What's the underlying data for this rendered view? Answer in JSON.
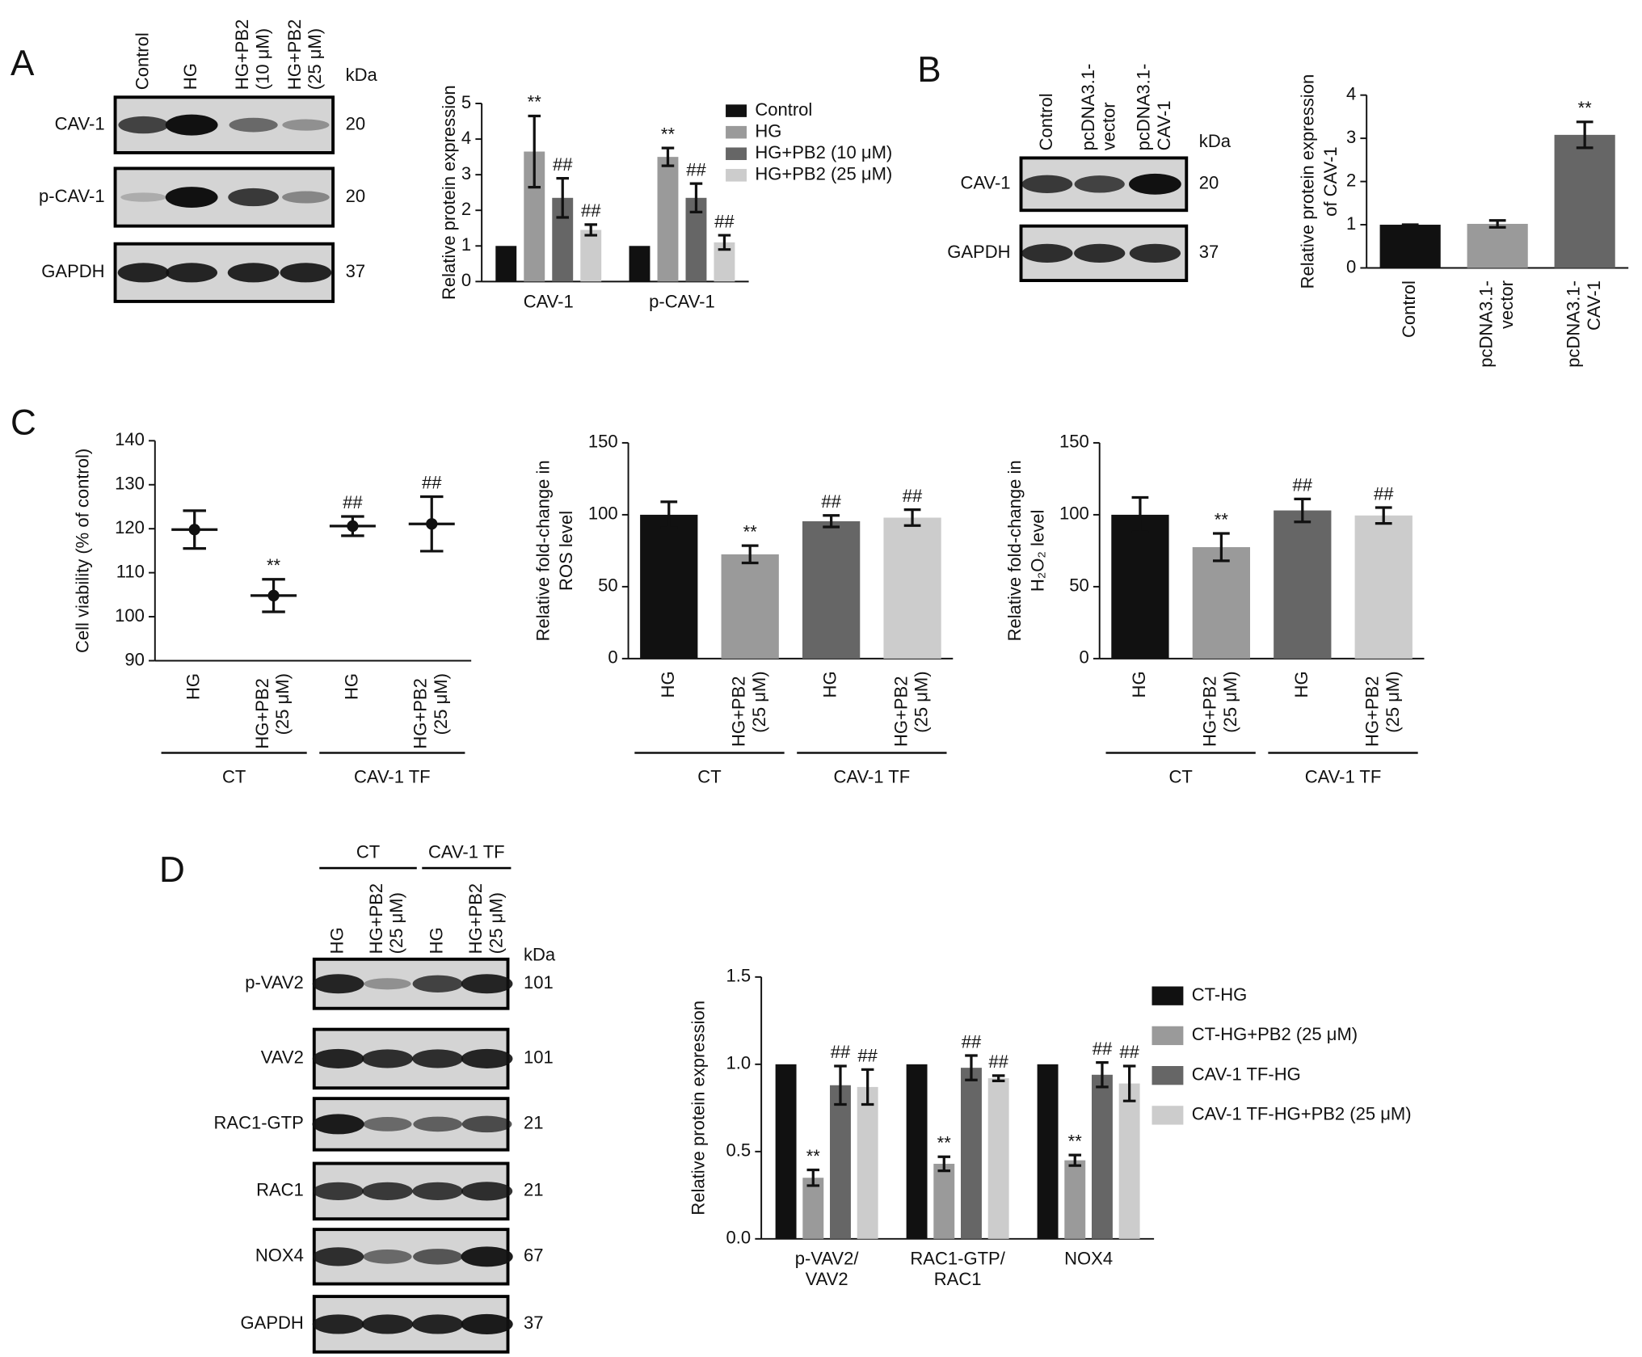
{
  "panel_labels": [
    "A",
    "B",
    "C",
    "D"
  ],
  "blots": [
    {
      "lanes": [
        "Control",
        "HG",
        "HG+PB2 (10 μM)",
        "HG+PB2 (25 μM)"
      ],
      "unit": "kDa",
      "rows": [
        {
          "name": "CAV-1",
          "kda": 20
        },
        {
          "name": "p-CAV-1",
          "kda": 20
        },
        {
          "name": "GAPDH",
          "kda": 37
        }
      ]
    },
    {
      "lanes": [
        "Control",
        "pcDNA3.1-vector",
        "pcDNA3.1-CAV-1"
      ],
      "unit": "kDa",
      "rows": [
        {
          "name": "CAV-1",
          "kda": 20
        },
        {
          "name": "GAPDH",
          "kda": 37
        }
      ]
    },
    {
      "groups": [
        "CT",
        "CAV-1 TF"
      ],
      "lanes": [
        "HG",
        "HG+PB2 (25 μM)",
        "HG",
        "HG+PB2 (25 μM)"
      ],
      "unit": "kDa",
      "rows": [
        {
          "name": "p-VAV2",
          "kda": 101
        },
        {
          "name": "VAV2",
          "kda": 101
        },
        {
          "name": "RAC1-GTP",
          "kda": 21
        },
        {
          "name": "RAC1",
          "kda": 21
        },
        {
          "name": "NOX4",
          "kda": 67
        },
        {
          "name": "GAPDH",
          "kda": 37
        }
      ]
    }
  ],
  "chart_data": [
    {
      "type": "bar",
      "ylabel": [
        "Relative protein expression"
      ],
      "categories": [
        "CAV-1",
        "p-CAV-1"
      ],
      "series": [
        {
          "name": "Control",
          "color": "#111111",
          "values": [
            1,
            1
          ]
        },
        {
          "name": "HG",
          "color": "#9a9a9a",
          "values": [
            3.65,
            3.5
          ],
          "errors": [
            1.0,
            0.25
          ],
          "markers": [
            "**",
            "**"
          ]
        },
        {
          "name": "HG+PB2 (10 μM)",
          "color": "#666666",
          "values": [
            2.35,
            2.35
          ],
          "errors": [
            0.55,
            0.4
          ],
          "markers": [
            "##",
            "##"
          ]
        },
        {
          "name": "HG+PB2 (25 μM)",
          "color": "#cccccc",
          "values": [
            1.45,
            1.1
          ],
          "errors": [
            0.15,
            0.2
          ],
          "markers": [
            "##",
            "##"
          ]
        }
      ],
      "ylim": [
        0,
        5
      ],
      "yticks": [
        0,
        1,
        2,
        3,
        4,
        5
      ],
      "legend": "right"
    },
    {
      "type": "bar",
      "ylabel": [
        "Relative protein expression",
        "of CAV-1"
      ],
      "categories": [
        "Control",
        "pcDNA3.1-vector",
        "pcDNA3.1-CAV-1"
      ],
      "values": [
        1,
        1.02,
        3.08
      ],
      "errors": [
        0,
        0.08,
        0.3
      ],
      "markers": [
        null,
        null,
        "**"
      ],
      "colors": [
        "#111111",
        "#9a9a9a",
        "#666666"
      ],
      "ylim": [
        0,
        4
      ],
      "yticks": [
        0,
        1,
        2,
        3,
        4
      ]
    },
    {
      "type": "dot",
      "ylabel": [
        "Cell viability (% of control)"
      ],
      "categories": [
        "HG",
        "HG+PB2 (25 μM)",
        "HG",
        "HG+PB2 (25 μM)"
      ],
      "groups": [
        "CT",
        "CAV-1 TF"
      ],
      "values": [
        119.8,
        104.8,
        120.6,
        121.1
      ],
      "errors": [
        4.3,
        3.7,
        2.2,
        6.2
      ],
      "markers": [
        null,
        "**",
        "##",
        "##"
      ],
      "color": "#111111",
      "ylim": [
        90,
        140
      ],
      "yticks": [
        90,
        100,
        110,
        120,
        130,
        140
      ]
    },
    {
      "type": "bar",
      "ylabel": [
        "Relative fold-change in",
        "ROS level"
      ],
      "categories": [
        "HG",
        "HG+PB2 (25 μM)",
        "HG",
        "HG+PB2 (25 μM)"
      ],
      "groups": [
        "CT",
        "CAV-1 TF"
      ],
      "values": [
        100,
        72.5,
        95.5,
        98
      ],
      "errors": [
        9,
        6,
        4,
        5.5
      ],
      "markers": [
        null,
        "**",
        "##",
        "##"
      ],
      "colors": [
        "#111111",
        "#9a9a9a",
        "#666666",
        "#cccccc"
      ],
      "ylim": [
        0,
        150
      ],
      "yticks": [
        0,
        50,
        100,
        150
      ]
    },
    {
      "type": "bar",
      "ylabel": [
        "Relative fold-change in",
        "H₂O₂ level"
      ],
      "categories": [
        "HG",
        "HG+PB2 (25 μM)",
        "HG",
        "HG+PB2 (25 μM)"
      ],
      "groups": [
        "CT",
        "CAV-1 TF"
      ],
      "values": [
        100,
        77.5,
        103,
        99.5
      ],
      "errors": [
        12,
        9.5,
        8,
        5.5
      ],
      "markers": [
        null,
        "**",
        "##",
        "##"
      ],
      "colors": [
        "#111111",
        "#9a9a9a",
        "#666666",
        "#cccccc"
      ],
      "ylim": [
        0,
        150
      ],
      "yticks": [
        0,
        50,
        100,
        150
      ]
    },
    {
      "type": "bar",
      "ylabel": [
        "Relative protein expression"
      ],
      "categories": [
        "p-VAV2/VAV2",
        "RAC1-GTP/RAC1",
        "NOX4"
      ],
      "series": [
        {
          "name": "CT-HG",
          "color": "#111111",
          "values": [
            1,
            1,
            1
          ]
        },
        {
          "name": "CT-HG+PB2 (25 μM)",
          "color": "#9a9a9a",
          "values": [
            0.35,
            0.43,
            0.45
          ],
          "errors": [
            0.045,
            0.04,
            0.03
          ],
          "markers": [
            "**",
            "**",
            "**"
          ]
        },
        {
          "name": "CAV-1 TF-HG",
          "color": "#666666",
          "values": [
            0.88,
            0.98,
            0.94
          ],
          "errors": [
            0.11,
            0.07,
            0.07
          ],
          "markers": [
            "##",
            "##",
            "##"
          ]
        },
        {
          "name": "CAV-1 TF-HG+PB2 (25 μM)",
          "color": "#cccccc",
          "values": [
            0.87,
            0.92,
            0.89
          ],
          "errors": [
            0.1,
            0.015,
            0.1
          ],
          "markers": [
            "##",
            "##",
            "##"
          ]
        }
      ],
      "ylim": [
        0,
        1.5
      ],
      "yticks": [
        {
          "value": 0,
          "label": "0.0"
        },
        0.5,
        {
          "value": 1,
          "label": "1.0"
        },
        1.5
      ],
      "legend": "right"
    }
  ]
}
